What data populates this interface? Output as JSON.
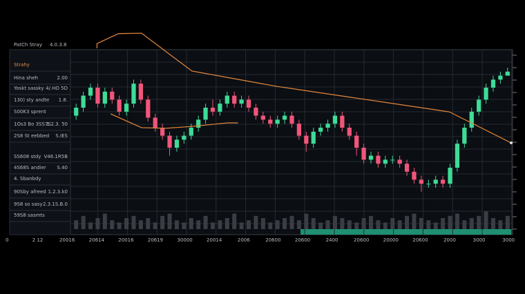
{
  "panel": {
    "title": "PatCh Stray",
    "version": "4.0.3.8",
    "rows": [
      [
        "Strahy"
      ],
      [
        "Hina sheh",
        "2.00"
      ],
      [
        "Yoskt sassky",
        "4/.HO 5D"
      ],
      [
        "130) sty andte",
        "1.8."
      ],
      [
        "S00K3 sprent"
      ],
      [
        "1Os3 Bo 3SS7S",
        "1.2.3. 50"
      ],
      [
        "2S8 St eebbed",
        "S.IES"
      ],
      [
        "SS608 stdy",
        "V46.1R5B"
      ],
      [
        "4S68S andier",
        "S.40"
      ],
      [
        "4. Sbanbdy"
      ],
      [
        "90Sby afreed",
        "1.2.3.k0"
      ],
      [
        "9S8 so sasy",
        "2.3.1S.B.0"
      ],
      [
        "59S8 sasmts"
      ]
    ]
  },
  "chart_data": {
    "type": "candlestick",
    "x_labels": [
      "0",
      "2 12",
      "20016",
      "20614",
      "20016",
      "20619",
      "30000",
      "20014",
      "2006",
      "20600",
      "20600",
      "2400",
      "20600",
      "20000",
      "20600",
      "2000",
      "3000",
      "3000"
    ],
    "open": [
      56,
      60,
      66,
      70,
      62,
      68,
      64,
      58,
      62,
      72,
      64,
      55,
      50,
      46,
      40,
      44,
      46,
      50,
      54,
      60,
      58,
      62,
      66,
      62,
      64,
      60,
      56,
      54,
      52,
      54,
      56,
      52,
      46,
      42,
      48,
      50,
      52,
      56,
      50,
      46,
      40,
      34,
      36,
      32,
      34,
      34,
      32,
      28,
      24,
      22,
      22,
      24,
      22,
      30,
      42,
      50,
      58,
      64,
      70,
      74,
      76
    ],
    "high": [
      62,
      68,
      72,
      72,
      70,
      70,
      66,
      64,
      74,
      74,
      66,
      57,
      52,
      48,
      46,
      48,
      52,
      56,
      62,
      64,
      64,
      68,
      68,
      66,
      66,
      62,
      58,
      56,
      56,
      58,
      58,
      54,
      48,
      50,
      52,
      54,
      58,
      58,
      52,
      48,
      42,
      38,
      38,
      36,
      36,
      36,
      34,
      30,
      26,
      24,
      26,
      26,
      32,
      44,
      52,
      60,
      66,
      72,
      76,
      78,
      80
    ],
    "low": [
      54,
      58,
      64,
      60,
      60,
      62,
      56,
      56,
      60,
      62,
      53,
      48,
      44,
      36,
      38,
      42,
      44,
      48,
      52,
      56,
      56,
      60,
      60,
      60,
      58,
      54,
      52,
      50,
      50,
      52,
      50,
      44,
      38,
      40,
      46,
      48,
      50,
      48,
      44,
      36,
      32,
      32,
      30,
      30,
      32,
      30,
      26,
      22,
      18,
      20,
      20,
      20,
      20,
      28,
      40,
      48,
      56,
      62,
      68,
      72,
      76
    ],
    "close": [
      60,
      66,
      70,
      62,
      68,
      64,
      58,
      62,
      72,
      64,
      55,
      50,
      46,
      40,
      44,
      46,
      50,
      54,
      60,
      58,
      62,
      66,
      62,
      64,
      60,
      56,
      54,
      52,
      54,
      56,
      52,
      46,
      42,
      48,
      50,
      52,
      56,
      50,
      46,
      40,
      34,
      36,
      32,
      34,
      34,
      32,
      28,
      24,
      22,
      22,
      24,
      22,
      30,
      42,
      50,
      58,
      64,
      70,
      74,
      76,
      78
    ],
    "volume": [
      4,
      6,
      3,
      5,
      7,
      4,
      3,
      5,
      6,
      4,
      5,
      3,
      6,
      7,
      4,
      3,
      5,
      4,
      6,
      3,
      4,
      5,
      7,
      3,
      4,
      6,
      5,
      3,
      4,
      5,
      6,
      4,
      7,
      5,
      3,
      4,
      6,
      5,
      4,
      3,
      5,
      6,
      4,
      3,
      5,
      4,
      6,
      7,
      5,
      4,
      3,
      5,
      6,
      7,
      4,
      5,
      6,
      8,
      5,
      4,
      6
    ],
    "xlim": [
      0,
      61
    ],
    "ylim": [
      0,
      100
    ],
    "vlim": [
      0,
      10
    ],
    "up_color": "#3ddc97",
    "down_color": "#f0567a",
    "overlays": [
      {
        "color": "#d9823b",
        "x": [
          3.4,
          3.4,
          6.4,
          9.6,
          16.6,
          28.3,
          52.4,
          61
        ],
        "values": [
          89.7,
          92,
          97,
          97.2,
          78.3,
          70.7,
          57.9,
          42.4
        ]
      },
      {
        "color": "#d9823b",
        "x": [
          5.3,
          9.6,
          13.0,
          16.8,
          21.6,
          23.0
        ],
        "values": [
          56.9,
          50,
          49.7,
          50.7,
          52.4,
          52.4
        ]
      }
    ]
  }
}
